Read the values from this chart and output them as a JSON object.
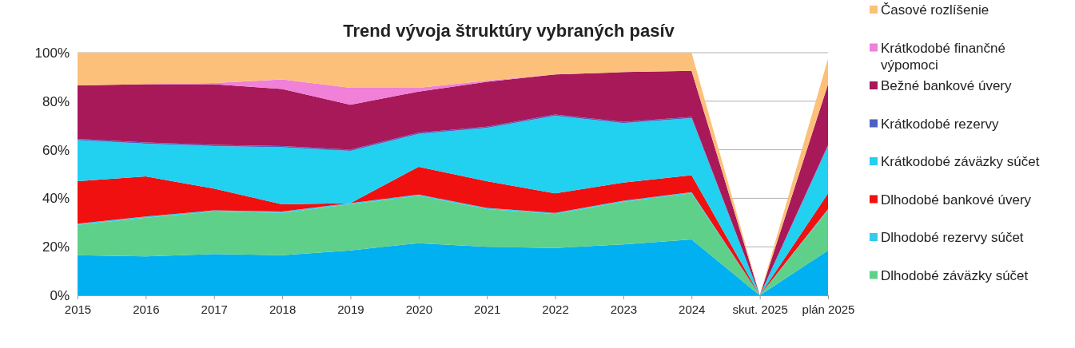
{
  "chart_data": {
    "type": "area",
    "stacked": true,
    "title": "Trend vývoja štruktúry vybraných pasív",
    "categories": [
      "2015",
      "2016",
      "2017",
      "2018",
      "2019",
      "2020",
      "2021",
      "2022",
      "2023",
      "2024",
      "skut. 2025",
      "plán 2025"
    ],
    "series": [
      {
        "color": "#00b0f0",
        "values": [
          16.5,
          16,
          17,
          16.5,
          18.5,
          21.5,
          20,
          19.5,
          21,
          23,
          0,
          18.5
        ]
      },
      {
        "name": "Dlhodobé záväzky súčet",
        "color": "#5fd08a",
        "values": [
          12.5,
          16,
          17.5,
          17.5,
          19,
          19.5,
          15.5,
          14,
          17.5,
          19,
          0,
          16.5
        ]
      },
      {
        "name": "Dlhodobé rezervy súčet",
        "color": "#33ccee",
        "values": [
          0.5,
          0.5,
          0.5,
          0.5,
          0.5,
          0.5,
          0.5,
          0.5,
          0.5,
          0.5,
          0,
          0.5
        ]
      },
      {
        "name": "Dlhodobé bankové úvery",
        "color": "#f01010",
        "values": [
          17.5,
          16.5,
          9,
          3,
          0,
          11.5,
          11,
          8,
          7.5,
          7,
          0,
          6.5
        ]
      },
      {
        "name": "Krátkodobé záväzky súčet",
        "color": "#22d0f0",
        "values": [
          17,
          13.5,
          17.5,
          23.5,
          21.5,
          13.5,
          22,
          32,
          24.5,
          23.5,
          0,
          19.5
        ]
      },
      {
        "name": "Krátkodobé rezervy",
        "color": "#5060c0",
        "values": [
          0.5,
          0.5,
          0.5,
          0.5,
          0.5,
          0.5,
          0.5,
          0.5,
          0.5,
          0.5,
          0,
          0.5
        ]
      },
      {
        "name": "Bežné bankové úvery",
        "color": "#a8195a",
        "values": [
          22,
          24,
          25,
          23.5,
          18.5,
          17,
          18.5,
          16.5,
          20.5,
          19,
          0,
          25
        ]
      },
      {
        "name": "Krátkodobé finančné výpomoci",
        "color": "#f080d8",
        "values": [
          null,
          0,
          0.5,
          4,
          7,
          1.5,
          0.5,
          0,
          null,
          null,
          null,
          null
        ]
      },
      {
        "name": "Časové rozlíšenie",
        "color": "#fcc07a",
        "values": [
          13.5,
          13,
          12.5,
          11,
          14.5,
          14.5,
          11.5,
          9,
          8,
          7.5,
          0,
          10.5
        ]
      }
    ],
    "ylim": [
      0,
      100
    ],
    "yticks": [
      {
        "value": 0,
        "label": "0%"
      },
      {
        "value": 20,
        "label": "20%"
      },
      {
        "value": 40,
        "label": "40%"
      },
      {
        "value": 60,
        "label": "60%"
      },
      {
        "value": 80,
        "label": "80%"
      },
      {
        "value": 100,
        "label": "100%"
      }
    ],
    "grid": "y",
    "legend": "right"
  }
}
